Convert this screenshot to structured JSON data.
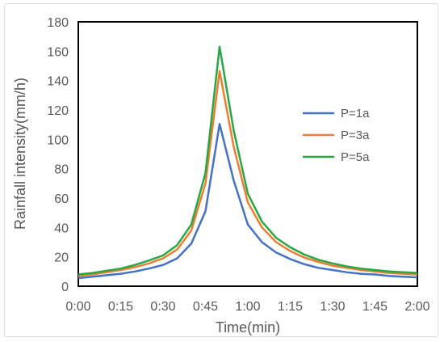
{
  "chart_data": {
    "type": "line",
    "title": "",
    "xlabel": "Time(min)",
    "ylabel": "Rainfall intensity(mm/h)",
    "ylim": [
      0,
      180
    ],
    "yticks": [
      "0",
      "20",
      "40",
      "60",
      "80",
      "100",
      "120",
      "140",
      "160",
      "180"
    ],
    "xlim": [
      0,
      120
    ],
    "xticks": [
      "0:00",
      "0:15",
      "0:30",
      "0:45",
      "1:00",
      "1:15",
      "1:30",
      "1:45",
      "2:00"
    ],
    "grid": false,
    "legend_position": "right",
    "x": [
      0,
      5,
      10,
      15,
      20,
      25,
      30,
      35,
      40,
      45,
      50,
      55,
      60,
      65,
      70,
      75,
      80,
      85,
      90,
      95,
      100,
      105,
      110,
      115,
      120
    ],
    "series": [
      {
        "name": "P=1a",
        "color": "#4472c4",
        "values": [
          5.5,
          6.5,
          7.5,
          8.5,
          10,
          12,
          14.5,
          19,
          29,
          51,
          110.5,
          72,
          42,
          30,
          23,
          18.5,
          15,
          12.5,
          11,
          9.5,
          8.5,
          8,
          7,
          6.5,
          6
        ]
      },
      {
        "name": "P=3a",
        "color": "#ed7d31",
        "values": [
          7,
          8,
          9.5,
          11,
          13,
          15.5,
          19,
          25,
          38,
          70,
          146.5,
          95,
          57,
          40,
          30,
          24,
          19.5,
          16.5,
          14,
          12.5,
          11,
          10,
          9,
          8.5,
          8
        ]
      },
      {
        "name": "P=5a",
        "color": "#28a745",
        "values": [
          8,
          9,
          10.5,
          12,
          14.5,
          17.5,
          21,
          28,
          42,
          77,
          163,
          106,
          63,
          44,
          33,
          26.5,
          21.5,
          18,
          15.5,
          13.5,
          12,
          11,
          10,
          9.5,
          9
        ]
      }
    ]
  }
}
